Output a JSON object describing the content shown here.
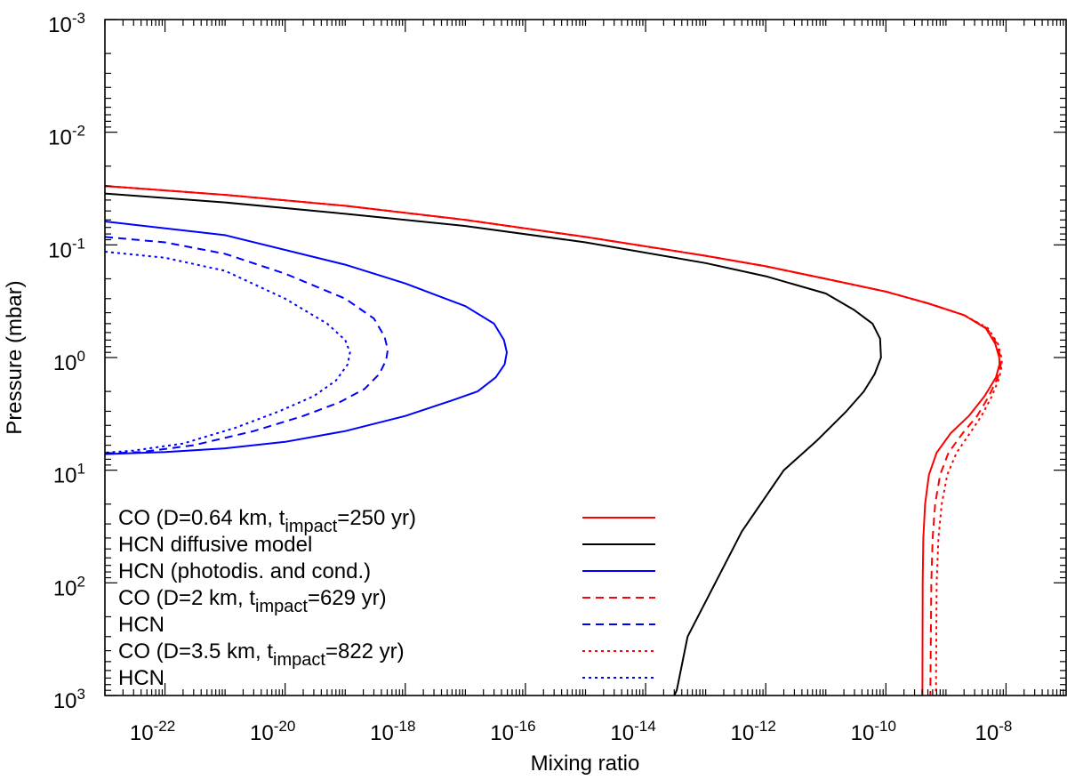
{
  "chart_data": {
    "type": "line",
    "xlabel": "Mixing ratio",
    "ylabel": "Pressure (mbar)",
    "x_scale": "log",
    "y_scale": "log",
    "y_reversed": true,
    "xlim": [
      1e-23,
      1e-07
    ],
    "ylim": [
      0.001,
      1000
    ],
    "grid": false,
    "legend_position": "bottom-left",
    "x_ticks": [
      {
        "value": 1e-22,
        "base": "10",
        "exp": "-22"
      },
      {
        "value": 1e-20,
        "base": "10",
        "exp": "-20"
      },
      {
        "value": 1e-18,
        "base": "10",
        "exp": "-18"
      },
      {
        "value": 1e-16,
        "base": "10",
        "exp": "-16"
      },
      {
        "value": 1e-14,
        "base": "10",
        "exp": "-14"
      },
      {
        "value": 1e-12,
        "base": "10",
        "exp": "-12"
      },
      {
        "value": 1e-10,
        "base": "10",
        "exp": "-10"
      },
      {
        "value": 1e-08,
        "base": "10",
        "exp": "-8"
      }
    ],
    "y_ticks": [
      {
        "value": 0.001,
        "base": "10",
        "exp": "-3"
      },
      {
        "value": 0.01,
        "base": "10",
        "exp": "-2"
      },
      {
        "value": 0.1,
        "base": "10",
        "exp": "-1"
      },
      {
        "value": 1,
        "base": "10",
        "exp": "0"
      },
      {
        "value": 10,
        "base": "10",
        "exp": "1"
      },
      {
        "value": 100,
        "base": "10",
        "exp": "2"
      },
      {
        "value": 1000,
        "base": "10",
        "exp": "3"
      }
    ],
    "series": [
      {
        "id": "co-064",
        "legend": {
          "pre": "CO (D=0.64 km, t",
          "sub": "impact",
          "post": "=250 yr)"
        },
        "color": "#ff0000",
        "dash": "solid",
        "points": [
          [
            1e-23,
            0.03
          ],
          [
            1e-21,
            0.036
          ],
          [
            1e-19,
            0.045
          ],
          [
            1e-17,
            0.06
          ],
          [
            1e-15,
            0.085
          ],
          [
            1e-13,
            0.125
          ],
          [
            1e-12,
            0.155
          ],
          [
            1e-11,
            0.2
          ],
          [
            1e-10,
            0.26
          ],
          [
            5e-10,
            0.33
          ],
          [
            2e-09,
            0.42
          ],
          [
            4.6e-09,
            0.55
          ],
          [
            6.6e-09,
            0.75
          ],
          [
            7.7e-09,
            1.0
          ],
          [
            7.8e-09,
            1.15
          ],
          [
            6.8e-09,
            1.5
          ],
          [
            4.4e-09,
            2.2
          ],
          [
            2.4e-09,
            3.3
          ],
          [
            1.2e-09,
            4.7
          ],
          [
            7e-10,
            7.0
          ],
          [
            5.2e-10,
            11
          ],
          [
            4.5e-10,
            20
          ],
          [
            4.2e-10,
            40
          ],
          [
            4.1e-10,
            100
          ],
          [
            4.05e-10,
            1000
          ]
        ]
      },
      {
        "id": "hcn-diff",
        "legend": {
          "pre": "HCN diffusive model",
          "sub": "",
          "post": ""
        },
        "color": "#000000",
        "dash": "solid",
        "points": [
          [
            1e-23,
            0.035
          ],
          [
            1e-21,
            0.042
          ],
          [
            1e-19,
            0.053
          ],
          [
            1e-17,
            0.068
          ],
          [
            1e-15,
            0.095
          ],
          [
            1e-13,
            0.145
          ],
          [
            1e-12,
            0.19
          ],
          [
            1e-11,
            0.27
          ],
          [
            3e-11,
            0.38
          ],
          [
            6e-11,
            0.5
          ],
          [
            8e-11,
            0.68
          ],
          [
            8.3e-11,
            1.0
          ],
          [
            6.5e-11,
            1.4
          ],
          [
            4.3e-11,
            2.0
          ],
          [
            2.2e-11,
            3.0
          ],
          [
            7e-12,
            5.5
          ],
          [
            2e-12,
            10
          ],
          [
            4e-13,
            35
          ],
          [
            5e-14,
            300
          ],
          [
            3.3e-14,
            900
          ],
          [
            3e-14,
            1000
          ]
        ]
      },
      {
        "id": "hcn-photo",
        "legend": {
          "pre": "HCN (photodis. and cond.)",
          "sub": "",
          "post": ""
        },
        "color": "#0000ff",
        "dash": "solid",
        "points": [
          [
            1e-23,
            0.062
          ],
          [
            1e-21,
            0.082
          ],
          [
            1e-19,
            0.15
          ],
          [
            1e-18,
            0.22
          ],
          [
            1e-17,
            0.35
          ],
          [
            3e-17,
            0.5
          ],
          [
            4.4e-17,
            0.7
          ],
          [
            4.9e-17,
            0.9
          ],
          [
            4.5e-17,
            1.15
          ],
          [
            3.2e-17,
            1.5
          ],
          [
            1.6e-17,
            2.0
          ],
          [
            6e-18,
            2.4
          ],
          [
            1e-18,
            3.3
          ],
          [
            1e-19,
            4.5
          ],
          [
            1e-20,
            5.6
          ],
          [
            1e-21,
            6.4
          ],
          [
            1e-22,
            6.9
          ],
          [
            1e-23,
            7.2
          ]
        ]
      },
      {
        "id": "co-2",
        "legend": {
          "pre": "CO (D=2 km, t",
          "sub": "impact",
          "post": "=629 yr)"
        },
        "color": "#ff0000",
        "dash": "dashed",
        "points": [
          [
            1e-23,
            0.03
          ],
          [
            1e-21,
            0.036
          ],
          [
            1e-19,
            0.045
          ],
          [
            1e-17,
            0.06
          ],
          [
            1e-15,
            0.085
          ],
          [
            1e-13,
            0.125
          ],
          [
            1e-12,
            0.155
          ],
          [
            1e-11,
            0.2
          ],
          [
            1e-10,
            0.26
          ],
          [
            5e-10,
            0.33
          ],
          [
            2e-09,
            0.42
          ],
          [
            4.8e-09,
            0.55
          ],
          [
            7e-09,
            0.75
          ],
          [
            8.1e-09,
            1.0
          ],
          [
            8.2e-09,
            1.15
          ],
          [
            7.3e-09,
            1.5
          ],
          [
            5.2e-09,
            2.2
          ],
          [
            3.3e-09,
            3.3
          ],
          [
            1.9e-09,
            4.7
          ],
          [
            1.1e-09,
            7.0
          ],
          [
            8e-10,
            11
          ],
          [
            6.6e-10,
            20
          ],
          [
            6e-10,
            40
          ],
          [
            5.7e-10,
            100
          ],
          [
            5.5e-10,
            1000
          ]
        ]
      },
      {
        "id": "hcn-2",
        "legend": {
          "pre": "HCN",
          "sub": "",
          "post": ""
        },
        "color": "#0000ff",
        "dash": "dashed",
        "points": [
          [
            1e-23,
            0.085
          ],
          [
            1e-22,
            0.095
          ],
          [
            1e-21,
            0.12
          ],
          [
            1e-20,
            0.18
          ],
          [
            1e-19,
            0.3
          ],
          [
            3e-19,
            0.45
          ],
          [
            4.5e-19,
            0.65
          ],
          [
            5.1e-19,
            0.85
          ],
          [
            4.8e-19,
            1.05
          ],
          [
            3.7e-19,
            1.4
          ],
          [
            2.1e-19,
            1.9
          ],
          [
            8e-20,
            2.5
          ],
          [
            2e-20,
            3.3
          ],
          [
            3e-21,
            4.5
          ],
          [
            3e-22,
            6.0
          ],
          [
            4e-23,
            6.9
          ],
          [
            1e-23,
            7.1
          ]
        ]
      },
      {
        "id": "co-35",
        "legend": {
          "pre": "CO (D=3.5 km, t",
          "sub": "impact",
          "post": "=822 yr)"
        },
        "color": "#ff0000",
        "dash": "dotted",
        "points": [
          [
            1e-23,
            0.03
          ],
          [
            1e-21,
            0.036
          ],
          [
            1e-19,
            0.045
          ],
          [
            1e-17,
            0.06
          ],
          [
            1e-15,
            0.085
          ],
          [
            1e-13,
            0.125
          ],
          [
            1e-12,
            0.155
          ],
          [
            1e-11,
            0.2
          ],
          [
            1e-10,
            0.26
          ],
          [
            5e-10,
            0.33
          ],
          [
            2e-09,
            0.42
          ],
          [
            5e-09,
            0.55
          ],
          [
            7.3e-09,
            0.75
          ],
          [
            8.4e-09,
            1.0
          ],
          [
            8.5e-09,
            1.15
          ],
          [
            7.8e-09,
            1.5
          ],
          [
            5.8e-09,
            2.2
          ],
          [
            3.9e-09,
            3.3
          ],
          [
            2.5e-09,
            4.7
          ],
          [
            1.5e-09,
            7.0
          ],
          [
            1.05e-09,
            11
          ],
          [
            8.5e-10,
            20
          ],
          [
            7.5e-10,
            40
          ],
          [
            7e-10,
            100
          ],
          [
            6.8e-10,
            1000
          ]
        ]
      },
      {
        "id": "hcn-35",
        "legend": {
          "pre": "HCN",
          "sub": "",
          "post": ""
        },
        "color": "#0000ff",
        "dash": "dotted",
        "points": [
          [
            1e-23,
            0.115
          ],
          [
            1e-22,
            0.13
          ],
          [
            1e-21,
            0.17
          ],
          [
            1e-20,
            0.3
          ],
          [
            5e-20,
            0.5
          ],
          [
            1e-19,
            0.7
          ],
          [
            1.2e-19,
            0.9
          ],
          [
            1.1e-19,
            1.15
          ],
          [
            7e-20,
            1.6
          ],
          [
            3e-20,
            2.2
          ],
          [
            8e-21,
            3.0
          ],
          [
            1.5e-21,
            4.2
          ],
          [
            2e-22,
            5.8
          ],
          [
            3e-23,
            6.7
          ],
          [
            1e-23,
            7.0
          ]
        ]
      }
    ]
  }
}
